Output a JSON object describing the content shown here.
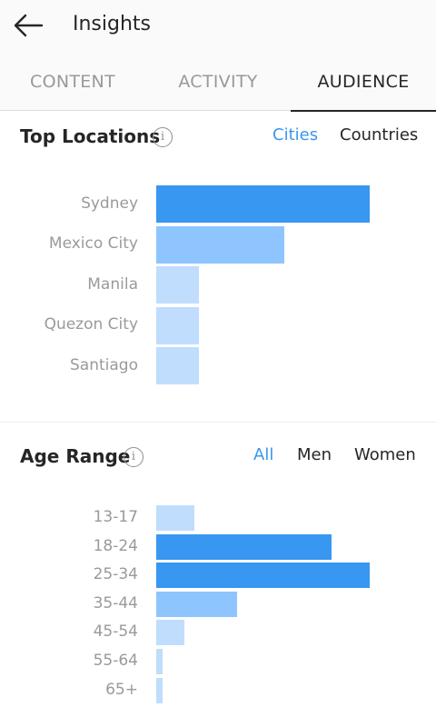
{
  "header": {
    "title": "Insights",
    "back_icon": "arrow-left-icon"
  },
  "tabs": [
    {
      "label": "CONTENT",
      "active": false
    },
    {
      "label": "ACTIVITY",
      "active": false
    },
    {
      "label": "AUDIENCE",
      "active": true
    }
  ],
  "colors": {
    "accent": "#3897f0",
    "bar_strong": "#3897f0",
    "bar_medium": "#8ec5ff",
    "bar_light": "#c0ddfd"
  },
  "top_locations": {
    "title": "Top Locations",
    "info_icon": "info-icon",
    "filters": [
      {
        "label": "Cities",
        "active": true
      },
      {
        "label": "Countries",
        "active": false
      }
    ],
    "chart_data": {
      "type": "bar",
      "orientation": "horizontal",
      "categories": [
        "Sydney",
        "Mexico City",
        "Manila",
        "Quezon City",
        "Santiago"
      ],
      "values": [
        100,
        60,
        20,
        20,
        20
      ],
      "xlim": [
        0,
        100
      ],
      "grid": false
    }
  },
  "age_range": {
    "title": "Age Range",
    "info_icon": "info-icon",
    "filters": [
      {
        "label": "All",
        "active": true
      },
      {
        "label": "Men",
        "active": false
      },
      {
        "label": "Women",
        "active": false
      }
    ],
    "chart_data": {
      "type": "bar",
      "orientation": "horizontal",
      "categories": [
        "13-17",
        "18-24",
        "25-34",
        "35-44",
        "45-54",
        "55-64",
        "65+"
      ],
      "values": [
        18,
        82,
        100,
        38,
        13,
        3,
        3
      ],
      "xlim": [
        0,
        100
      ],
      "grid": false
    }
  }
}
